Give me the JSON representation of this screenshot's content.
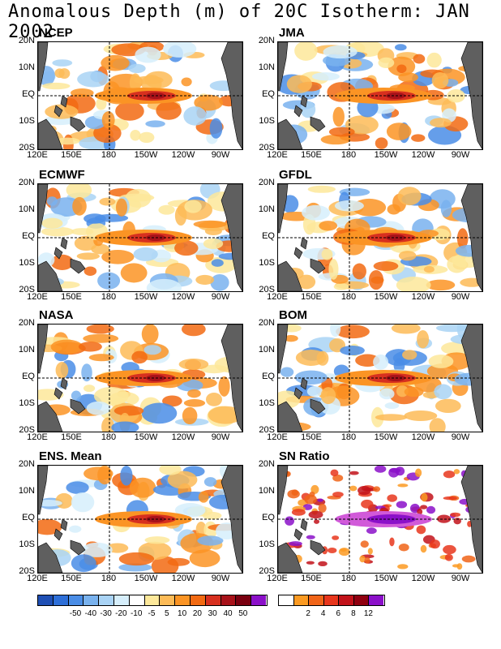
{
  "title": "Anomalous Depth (m) of 20C Isotherm: JAN 2002",
  "lat_labels": [
    "20N",
    "10N",
    "EQ",
    "10S",
    "20S"
  ],
  "lon_labels": [
    "120E",
    "150E",
    "180",
    "150W",
    "120W",
    "90W"
  ],
  "panels": [
    {
      "name": "NCEP"
    },
    {
      "name": "JMA"
    },
    {
      "name": "ECMWF"
    },
    {
      "name": "GFDL"
    },
    {
      "name": "NASA"
    },
    {
      "name": "BOM"
    },
    {
      "name": "ENS. Mean"
    },
    {
      "name": "SN Ratio"
    }
  ],
  "colorbar_left": {
    "colors": [
      "#1f4fb4",
      "#2e6fd8",
      "#4a8de6",
      "#79b2ee",
      "#a9d3f5",
      "#d6eefb",
      "#ffffff",
      "#fde89a",
      "#fdbb57",
      "#fb9424",
      "#f26a12",
      "#d7301f",
      "#a8121a",
      "#7a0010",
      "#8b10c9"
    ],
    "labels": [
      "-50",
      "-40",
      "-30",
      "-20",
      "-10",
      "-5",
      "5",
      "10",
      "20",
      "30",
      "40",
      "50"
    ]
  },
  "colorbar_right": {
    "colors": [
      "#ffffff",
      "#fb9a22",
      "#f06418",
      "#e8361c",
      "#c2121a",
      "#900010",
      "#8b10c9"
    ],
    "labels": [
      "2",
      "4",
      "6",
      "8",
      "12"
    ]
  }
}
